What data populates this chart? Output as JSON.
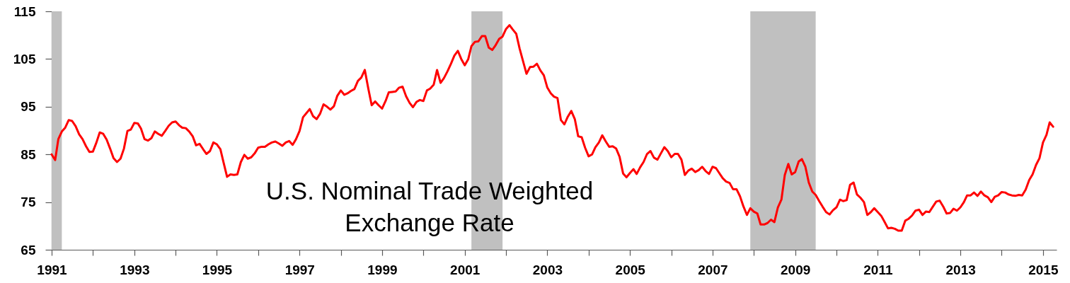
{
  "chart_data": {
    "type": "line",
    "title": "U.S. Nominal Trade Weighted\nExchange Rate",
    "x": [
      "1991-01",
      "1991-02",
      "1991-03",
      "1991-04",
      "1991-05",
      "1991-06",
      "1991-07",
      "1991-08",
      "1991-09",
      "1991-10",
      "1991-11",
      "1991-12",
      "1992-01",
      "1992-02",
      "1992-03",
      "1992-04",
      "1992-05",
      "1992-06",
      "1992-07",
      "1992-08",
      "1992-09",
      "1992-10",
      "1992-11",
      "1992-12",
      "1993-01",
      "1993-02",
      "1993-03",
      "1993-04",
      "1993-05",
      "1993-06",
      "1993-07",
      "1993-08",
      "1993-09",
      "1993-10",
      "1993-11",
      "1993-12",
      "1994-01",
      "1994-02",
      "1994-03",
      "1994-04",
      "1994-05",
      "1994-06",
      "1994-07",
      "1994-08",
      "1994-09",
      "1994-10",
      "1994-11",
      "1994-12",
      "1995-01",
      "1995-02",
      "1995-03",
      "1995-04",
      "1995-05",
      "1995-06",
      "1995-07",
      "1995-08",
      "1995-09",
      "1995-10",
      "1995-11",
      "1995-12",
      "1996-01",
      "1996-02",
      "1996-03",
      "1996-04",
      "1996-05",
      "1996-06",
      "1996-07",
      "1996-08",
      "1996-09",
      "1996-10",
      "1996-11",
      "1996-12",
      "1997-01",
      "1997-02",
      "1997-03",
      "1997-04",
      "1997-05",
      "1997-06",
      "1997-07",
      "1997-08",
      "1997-09",
      "1997-10",
      "1997-11",
      "1997-12",
      "1998-01",
      "1998-02",
      "1998-03",
      "1998-04",
      "1998-05",
      "1998-06",
      "1998-07",
      "1998-08",
      "1998-09",
      "1998-10",
      "1998-11",
      "1998-12",
      "1999-01",
      "1999-02",
      "1999-03",
      "1999-04",
      "1999-05",
      "1999-06",
      "1999-07",
      "1999-08",
      "1999-09",
      "1999-10",
      "1999-11",
      "1999-12",
      "2000-01",
      "2000-02",
      "2000-03",
      "2000-04",
      "2000-05",
      "2000-06",
      "2000-07",
      "2000-08",
      "2000-09",
      "2000-10",
      "2000-11",
      "2000-12",
      "2001-01",
      "2001-02",
      "2001-03",
      "2001-04",
      "2001-05",
      "2001-06",
      "2001-07",
      "2001-08",
      "2001-09",
      "2001-10",
      "2001-11",
      "2001-12",
      "2002-01",
      "2002-02",
      "2002-03",
      "2002-04",
      "2002-05",
      "2002-06",
      "2002-07",
      "2002-08",
      "2002-09",
      "2002-10",
      "2002-11",
      "2002-12",
      "2003-01",
      "2003-02",
      "2003-03",
      "2003-04",
      "2003-05",
      "2003-06",
      "2003-07",
      "2003-08",
      "2003-09",
      "2003-10",
      "2003-11",
      "2003-12",
      "2004-01",
      "2004-02",
      "2004-03",
      "2004-04",
      "2004-05",
      "2004-06",
      "2004-07",
      "2004-08",
      "2004-09",
      "2004-10",
      "2004-11",
      "2004-12",
      "2005-01",
      "2005-02",
      "2005-03",
      "2005-04",
      "2005-05",
      "2005-06",
      "2005-07",
      "2005-08",
      "2005-09",
      "2005-10",
      "2005-11",
      "2005-12",
      "2006-01",
      "2006-02",
      "2006-03",
      "2006-04",
      "2006-05",
      "2006-06",
      "2006-07",
      "2006-08",
      "2006-09",
      "2006-10",
      "2006-11",
      "2006-12",
      "2007-01",
      "2007-02",
      "2007-03",
      "2007-04",
      "2007-05",
      "2007-06",
      "2007-07",
      "2007-08",
      "2007-09",
      "2007-10",
      "2007-11",
      "2007-12",
      "2008-01",
      "2008-02",
      "2008-03",
      "2008-04",
      "2008-05",
      "2008-06",
      "2008-07",
      "2008-08",
      "2008-09",
      "2008-10",
      "2008-11",
      "2008-12",
      "2009-01",
      "2009-02",
      "2009-03",
      "2009-04",
      "2009-05",
      "2009-06",
      "2009-07",
      "2009-08",
      "2009-09",
      "2009-10",
      "2009-11",
      "2009-12",
      "2010-01",
      "2010-02",
      "2010-03",
      "2010-04",
      "2010-05",
      "2010-06",
      "2010-07",
      "2010-08",
      "2010-09",
      "2010-10",
      "2010-11",
      "2010-12",
      "2011-01",
      "2011-02",
      "2011-03",
      "2011-04",
      "2011-05",
      "2011-06",
      "2011-07",
      "2011-08",
      "2011-09",
      "2011-10",
      "2011-11",
      "2011-12",
      "2012-01",
      "2012-02",
      "2012-03",
      "2012-04",
      "2012-05",
      "2012-06",
      "2012-07",
      "2012-08",
      "2012-09",
      "2012-10",
      "2012-11",
      "2012-12",
      "2013-01",
      "2013-02",
      "2013-03",
      "2013-04",
      "2013-05",
      "2013-06",
      "2013-07",
      "2013-08",
      "2013-09",
      "2013-10",
      "2013-11",
      "2013-12",
      "2014-01",
      "2014-02",
      "2014-03",
      "2014-04",
      "2014-05",
      "2014-06",
      "2014-07",
      "2014-08",
      "2014-09",
      "2014-10",
      "2014-11",
      "2014-12",
      "2015-01",
      "2015-02",
      "2015-03",
      "2015-04"
    ],
    "series": [
      {
        "color": "#ff0000",
        "values": [
          85.0,
          83.8,
          88.2,
          89.8,
          90.6,
          92.2,
          92.0,
          90.9,
          89.2,
          88.2,
          86.7,
          85.5,
          85.6,
          87.5,
          89.6,
          89.3,
          88.1,
          86.2,
          84.2,
          83.4,
          84.1,
          86.2,
          89.9,
          90.2,
          91.6,
          91.5,
          90.4,
          88.2,
          87.9,
          88.4,
          89.8,
          89.3,
          88.9,
          89.9,
          91.0,
          91.7,
          91.9,
          91.1,
          90.6,
          90.5,
          89.8,
          88.8,
          86.9,
          87.2,
          86.1,
          85.1,
          85.7,
          87.5,
          87.1,
          86.1,
          83.3,
          80.3,
          80.8,
          80.7,
          80.8,
          83.4,
          84.9,
          84.1,
          84.4,
          85.2,
          86.4,
          86.6,
          86.6,
          87.1,
          87.5,
          87.7,
          87.3,
          86.8,
          87.5,
          87.8,
          87.0,
          88.2,
          89.9,
          92.8,
          93.6,
          94.5,
          93.0,
          92.4,
          93.5,
          95.5,
          95.0,
          94.4,
          95.1,
          97.3,
          98.4,
          97.5,
          97.8,
          98.3,
          98.7,
          100.4,
          101.1,
          102.7,
          98.8,
          95.3,
          96.1,
          95.3,
          94.6,
          96.2,
          98.0,
          98.1,
          98.2,
          99.0,
          99.2,
          97.2,
          95.8,
          94.9,
          96.0,
          96.4,
          96.2,
          98.4,
          98.8,
          99.6,
          102.7,
          100.0,
          101.0,
          102.4,
          104.0,
          105.7,
          106.7,
          105.0,
          103.7,
          105.0,
          107.7,
          108.6,
          108.7,
          109.8,
          109.8,
          107.4,
          106.9,
          107.9,
          109.2,
          109.7,
          111.3,
          112.1,
          111.2,
          110.3,
          107.2,
          104.5,
          101.9,
          103.3,
          103.4,
          104.0,
          102.6,
          101.6,
          99.0,
          97.8,
          97.1,
          96.8,
          92.2,
          91.3,
          92.9,
          94.1,
          92.4,
          88.8,
          88.6,
          86.4,
          84.6,
          85.0,
          86.5,
          87.5,
          89.0,
          87.7,
          86.6,
          86.7,
          86.2,
          84.5,
          81.0,
          80.2,
          81.1,
          81.9,
          80.9,
          82.3,
          83.4,
          85.1,
          85.7,
          84.3,
          83.9,
          85.2,
          86.5,
          85.7,
          84.4,
          85.1,
          85.1,
          83.9,
          80.7,
          81.6,
          82.0,
          81.3,
          81.7,
          82.4,
          81.5,
          80.9,
          82.4,
          82.1,
          81.1,
          80.0,
          79.3,
          79.0,
          77.7,
          77.7,
          76.2,
          74.1,
          72.3,
          73.7,
          73.0,
          72.6,
          70.3,
          70.3,
          70.6,
          71.3,
          70.8,
          73.9,
          75.5,
          80.7,
          83.0,
          80.8,
          81.3,
          83.5,
          84.0,
          82.4,
          79.1,
          77.2,
          76.5,
          75.2,
          74.0,
          72.9,
          72.4,
          73.3,
          73.9,
          75.5,
          75.2,
          75.4,
          78.6,
          79.1,
          76.6,
          75.9,
          75.0,
          72.3,
          72.9,
          73.7,
          72.9,
          72.1,
          70.9,
          69.5,
          69.6,
          69.4,
          69.0,
          69.0,
          71.1,
          71.5,
          72.2,
          73.2,
          73.4,
          72.3,
          73.0,
          72.9,
          74.0,
          75.1,
          75.3,
          74.1,
          72.6,
          72.7,
          73.6,
          73.2,
          73.9,
          75.0,
          76.4,
          76.4,
          77.0,
          76.3,
          77.2,
          76.4,
          76.0,
          75.0,
          76.1,
          76.4,
          77.1,
          77.0,
          76.6,
          76.4,
          76.3,
          76.5,
          76.4,
          77.6,
          79.6,
          80.8,
          82.8,
          84.2,
          87.5,
          89.1,
          91.7,
          90.8
        ]
      }
    ],
    "xlim": [
      "1991-01",
      "2015-05"
    ],
    "xticks": [
      "1991",
      {
        "value": "1992",
        "label": null
      },
      "1993",
      {
        "value": "1994",
        "label": null
      },
      "1995",
      {
        "value": "1996",
        "label": null
      },
      "1997",
      {
        "value": "1998",
        "label": null
      },
      "1999",
      {
        "value": "2000",
        "label": null
      },
      "2001",
      {
        "value": "2002",
        "label": null
      },
      "2003",
      {
        "value": "2004",
        "label": null
      },
      "2005",
      {
        "value": "2006",
        "label": null
      },
      "2007",
      {
        "value": "2008",
        "label": null
      },
      "2009",
      {
        "value": "2010",
        "label": null
      },
      "2011",
      {
        "value": "2012",
        "label": null
      },
      "2013",
      {
        "value": "2014",
        "label": null
      },
      "2015"
    ],
    "ylim": [
      65,
      115
    ],
    "yticks": [
      65,
      75,
      85,
      95,
      105,
      115
    ],
    "bands": [
      {
        "axis": "x",
        "from": "1991-01",
        "to": "1991-04",
        "color": "#c0c0c0"
      },
      {
        "axis": "x",
        "from": "2001-03",
        "to": "2001-12",
        "color": "#c0c0c0"
      },
      {
        "axis": "x",
        "from": "2007-12",
        "to": "2009-07",
        "color": "#c0c0c0"
      }
    ],
    "grid": false
  }
}
